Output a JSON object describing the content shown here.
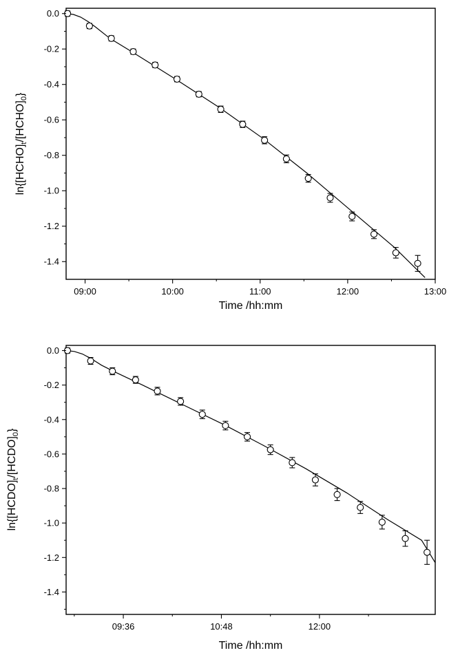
{
  "chart_data": [
    {
      "type": "scatter",
      "xlabel": "Time /hh:mm",
      "ylabel": "ln{[HCHO]t/[HCHO]0}",
      "ylabel_parts": {
        "open": "ln{[HCHO]",
        "sub1": "t",
        "mid": "/[HCHO]",
        "sub2": "0",
        "close": "}"
      },
      "xlim": [
        "08:47",
        "13:00"
      ],
      "ylim": [
        -1.5,
        0.03
      ],
      "x_ticks": [
        "09:00",
        "10:00",
        "11:00",
        "12:00",
        "13:00"
      ],
      "y_ticks": [
        "0.0",
        "-0.2",
        "-0.4",
        "-0.6",
        "-0.8",
        "-1.0",
        "-1.2",
        "-1.4"
      ],
      "grid": false,
      "points": [
        {
          "x": "08:48",
          "y": 0.0,
          "err": 0.015
        },
        {
          "x": "09:03",
          "y": -0.07,
          "err": 0.015
        },
        {
          "x": "09:18",
          "y": -0.14,
          "err": 0.015
        },
        {
          "x": "09:33",
          "y": -0.215,
          "err": 0.015
        },
        {
          "x": "09:48",
          "y": -0.29,
          "err": 0.015
        },
        {
          "x": "10:03",
          "y": -0.37,
          "err": 0.015
        },
        {
          "x": "10:18",
          "y": -0.455,
          "err": 0.015
        },
        {
          "x": "10:33",
          "y": -0.54,
          "err": 0.018
        },
        {
          "x": "10:48",
          "y": -0.625,
          "err": 0.018
        },
        {
          "x": "11:03",
          "y": -0.715,
          "err": 0.02
        },
        {
          "x": "11:18",
          "y": -0.82,
          "err": 0.022
        },
        {
          "x": "11:33",
          "y": -0.93,
          "err": 0.022
        },
        {
          "x": "11:48",
          "y": -1.04,
          "err": 0.025
        },
        {
          "x": "12:03",
          "y": -1.145,
          "err": 0.025
        },
        {
          "x": "12:18",
          "y": -1.245,
          "err": 0.025
        },
        {
          "x": "12:33",
          "y": -1.35,
          "err": 0.03
        },
        {
          "x": "12:48",
          "y": -1.41,
          "err": 0.045
        }
      ],
      "fit_curve": [
        [
          "08:47",
          0.0
        ],
        [
          "08:52",
          -0.005
        ],
        [
          "08:57",
          -0.02
        ],
        [
          "09:02",
          -0.045
        ],
        [
          "09:07",
          -0.075
        ],
        [
          "09:17",
          -0.14
        ],
        [
          "09:32",
          -0.215
        ],
        [
          "10:02",
          -0.37
        ],
        [
          "10:32",
          -0.53
        ],
        [
          "11:02",
          -0.705
        ],
        [
          "11:32",
          -0.9
        ],
        [
          "12:02",
          -1.11
        ],
        [
          "12:32",
          -1.32
        ],
        [
          "12:53",
          -1.49
        ]
      ]
    },
    {
      "type": "scatter",
      "xlabel": "Time /hh:mm",
      "ylabel": "ln{[HCDO]t/[HCDO]0}",
      "ylabel_parts": {
        "open": "ln{[HCDO]",
        "sub1": "t",
        "mid": "/[HCDO]",
        "sub2": "0",
        "close": "}"
      },
      "xlim": [
        "08:54",
        "13:25"
      ],
      "ylim": [
        -1.53,
        0.03
      ],
      "x_ticks": [
        "09:36",
        "10:48",
        "12:00"
      ],
      "y_ticks": [
        "0.0",
        "-0.2",
        "-0.4",
        "-0.6",
        "-0.8",
        "-1.0",
        "-1.2",
        "-1.4"
      ],
      "grid": false,
      "points": [
        {
          "x": "08:55",
          "y": 0.0,
          "err": 0.015
        },
        {
          "x": "09:12",
          "y": -0.06,
          "err": 0.02
        },
        {
          "x": "09:28",
          "y": -0.12,
          "err": 0.02
        },
        {
          "x": "09:45",
          "y": -0.17,
          "err": 0.02
        },
        {
          "x": "10:01",
          "y": -0.235,
          "err": 0.022
        },
        {
          "x": "10:18",
          "y": -0.295,
          "err": 0.022
        },
        {
          "x": "10:34",
          "y": -0.37,
          "err": 0.025
        },
        {
          "x": "10:51",
          "y": -0.435,
          "err": 0.025
        },
        {
          "x": "11:07",
          "y": -0.5,
          "err": 0.025
        },
        {
          "x": "11:24",
          "y": -0.575,
          "err": 0.028
        },
        {
          "x": "11:40",
          "y": -0.65,
          "err": 0.03
        },
        {
          "x": "11:57",
          "y": -0.75,
          "err": 0.035
        },
        {
          "x": "12:13",
          "y": -0.835,
          "err": 0.035
        },
        {
          "x": "12:30",
          "y": -0.91,
          "err": 0.035
        },
        {
          "x": "12:46",
          "y": -0.995,
          "err": 0.04
        },
        {
          "x": "13:03",
          "y": -1.09,
          "err": 0.045
        },
        {
          "x": "13:19",
          "y": -1.17,
          "err": 0.07
        }
      ],
      "fit_curve": [
        [
          "08:54",
          0.0
        ],
        [
          "09:00",
          -0.005
        ],
        [
          "09:06",
          -0.02
        ],
        [
          "09:12",
          -0.045
        ],
        [
          "09:20",
          -0.085
        ],
        [
          "09:30",
          -0.125
        ],
        [
          "09:50",
          -0.2
        ],
        [
          "10:20",
          -0.315
        ],
        [
          "10:50",
          -0.43
        ],
        [
          "11:20",
          -0.555
        ],
        [
          "11:50",
          -0.685
        ],
        [
          "12:20",
          -0.825
        ],
        [
          "12:50",
          -0.98
        ],
        [
          "13:15",
          -1.1
        ],
        [
          "13:25",
          -1.23
        ]
      ]
    }
  ]
}
